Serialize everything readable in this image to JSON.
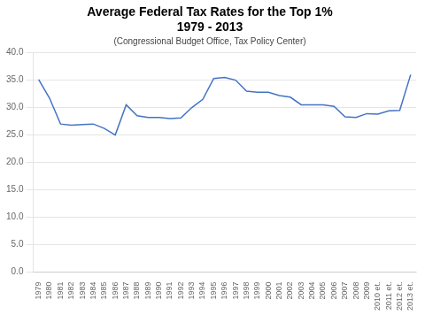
{
  "chart_data": {
    "type": "line",
    "title": [
      "Average Federal Tax Rates for the Top 1%",
      "1979 - 2013"
    ],
    "subtitle": "(Congressional Budget Office, Tax Policy Center)",
    "categories": [
      "1979",
      "1980",
      "1981",
      "1982",
      "1983",
      "1984",
      "1985",
      "1986",
      "1987",
      "1988",
      "1989",
      "1990",
      "1991",
      "1992",
      "1993",
      "1994",
      "1995",
      "1996",
      "1997",
      "1998",
      "1999",
      "2000",
      "2001",
      "2002",
      "2003",
      "2004",
      "2005",
      "2006",
      "2007",
      "2008",
      "2009",
      "2010 et.",
      "2011 et.",
      "2012 et.",
      "2013 et."
    ],
    "values": [
      35.1,
      31.7,
      27.0,
      26.8,
      26.9,
      27.0,
      26.2,
      25.0,
      30.5,
      28.5,
      28.2,
      28.2,
      28.0,
      28.1,
      30.0,
      31.5,
      35.3,
      35.5,
      35.0,
      33.0,
      32.8,
      32.8,
      32.2,
      31.9,
      30.5,
      30.5,
      30.5,
      30.2,
      28.3,
      28.2,
      28.9,
      28.8,
      29.4,
      29.5,
      36.0
    ],
    "color": "#4472C4",
    "ylim": [
      0,
      40
    ],
    "yticks": [
      {
        "value": 0,
        "label": "0.0"
      },
      {
        "value": 5,
        "label": "5.0"
      },
      {
        "value": 10,
        "label": "10.0"
      },
      {
        "value": 15,
        "label": "15.0"
      },
      {
        "value": 20,
        "label": "20.0"
      },
      {
        "value": 25,
        "label": "25.0"
      },
      {
        "value": 30,
        "label": "30.0"
      },
      {
        "value": 35,
        "label": "35.0"
      },
      {
        "value": 40,
        "label": "40.0"
      }
    ],
    "grid": true
  }
}
